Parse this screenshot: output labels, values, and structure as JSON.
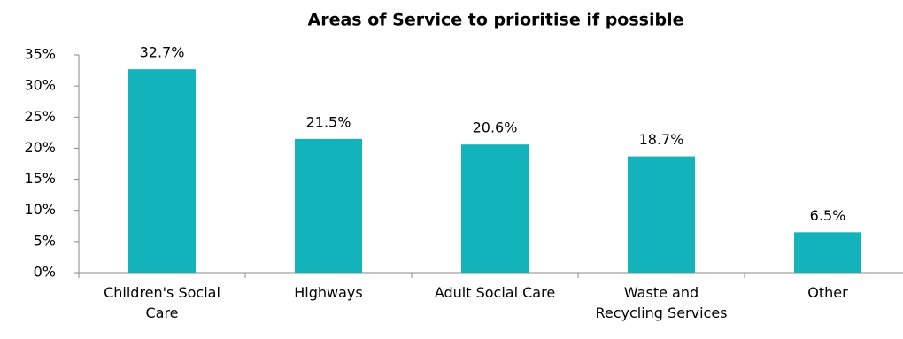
{
  "chart_data": {
    "type": "bar",
    "title": "Areas of Service to prioritise if possible",
    "categories": [
      "Children's Social Care",
      "Highways",
      "Adult Social Care",
      "Waste and Recycling Services",
      "Other"
    ],
    "values": [
      32.7,
      21.5,
      20.6,
      18.7,
      6.5
    ],
    "value_labels": [
      "32.7%",
      "21.5%",
      "20.6%",
      "18.7%",
      "6.5%"
    ],
    "color": "#13b3bb",
    "ylim": [
      0,
      35
    ],
    "yticks": [
      {
        "value": 0,
        "label": "0%"
      },
      {
        "value": 5,
        "label": "5%"
      },
      {
        "value": 10,
        "label": "10%"
      },
      {
        "value": 15,
        "label": "15%"
      },
      {
        "value": 20,
        "label": "20%"
      },
      {
        "value": 25,
        "label": "25%"
      },
      {
        "value": 30,
        "label": "30%"
      },
      {
        "value": 35,
        "label": "35%"
      }
    ],
    "grid": false
  }
}
